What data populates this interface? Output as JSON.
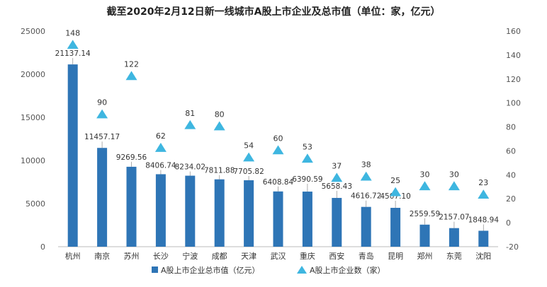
{
  "chart_data": {
    "type": "bar",
    "title": "截至2020年2月12日新一线城市A股上市企业及总市值（单位：家，亿元）",
    "categories": [
      "杭州",
      "南京",
      "苏州",
      "长沙",
      "宁波",
      "成都",
      "天津",
      "武汉",
      "重庆",
      "西安",
      "青岛",
      "昆明",
      "郑州",
      "东莞",
      "沈阳"
    ],
    "series": [
      {
        "name": "A股上市企业总市值（亿元）",
        "type": "bar",
        "axis": "left",
        "color": "#2e75b6",
        "values": [
          21137.14,
          11457.17,
          9269.56,
          8406.74,
          8234.02,
          7811.88,
          7705.82,
          6408.84,
          6390.59,
          5658.43,
          4616.72,
          4507.1,
          2559.59,
          2157.07,
          1848.94
        ],
        "labels": [
          "21137.14",
          "11457.17",
          "9269.56",
          "8406.74",
          "8234.02",
          "7811.88",
          "7705.82",
          "6408.84",
          "6390.59",
          "5658.43",
          "4616.72",
          "4507.10",
          "2559.59",
          "2157.07",
          "1848.94"
        ]
      },
      {
        "name": "A股上市企业数（家）",
        "type": "marker",
        "axis": "right",
        "color": "#3eb6e0",
        "values": [
          148,
          90,
          122,
          62,
          81,
          80,
          54,
          60,
          53,
          37,
          38,
          25,
          30,
          30,
          23
        ],
        "labels": [
          "148",
          "90",
          "122",
          "62",
          "81",
          "80",
          "54",
          "60",
          "53",
          "37",
          "38",
          "25",
          "30",
          "30",
          "23"
        ]
      }
    ],
    "left_axis": {
      "ylim": [
        0,
        25000
      ],
      "ticks": [
        "0",
        "5000",
        "10000",
        "15000",
        "20000",
        "25000"
      ]
    },
    "right_axis": {
      "ylim": [
        -20,
        160
      ],
      "ticks": [
        "-20",
        "0",
        "20",
        "40",
        "60",
        "80",
        "100",
        "120",
        "140",
        "160"
      ]
    },
    "grid": false,
    "legend_position": "bottom"
  }
}
